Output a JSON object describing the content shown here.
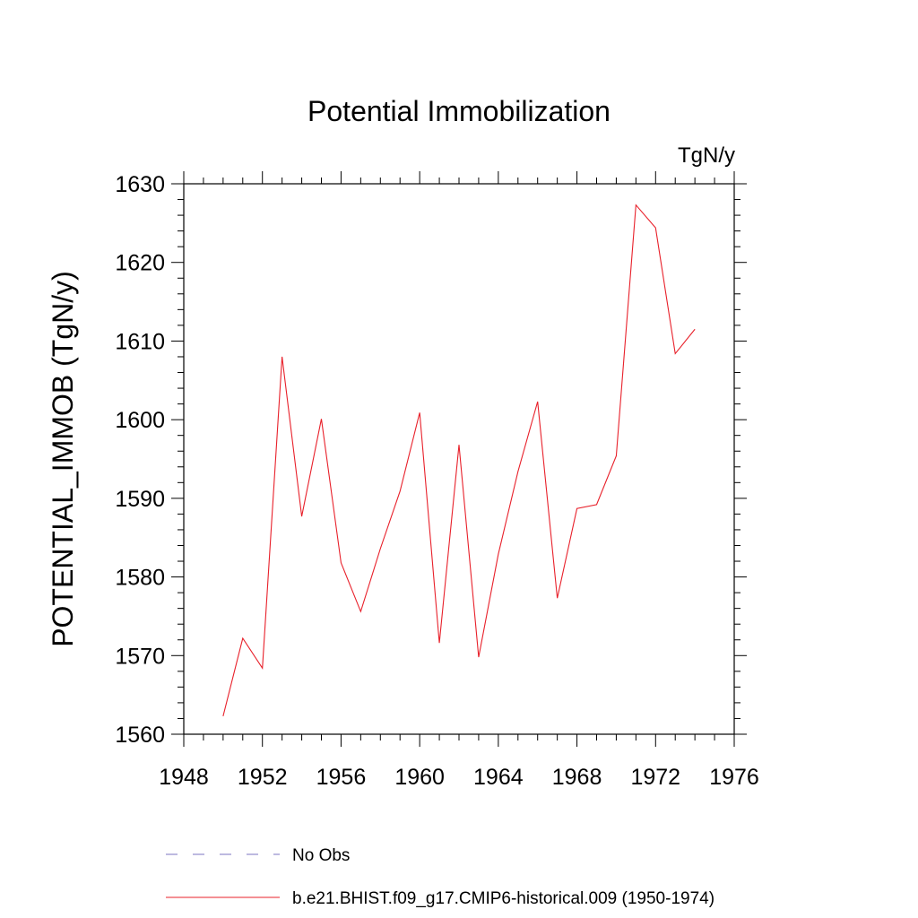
{
  "chart_data": {
    "type": "line",
    "title": "Potential Immobilization",
    "units_label": "TgN/y",
    "ylabel": "POTENTIAL_IMMOB  (TgN/y)",
    "xlabel": "",
    "xlim": [
      1948,
      1976
    ],
    "ylim": [
      1560,
      1630
    ],
    "x_ticks": [
      1948,
      1952,
      1956,
      1960,
      1964,
      1968,
      1972,
      1976
    ],
    "y_ticks": [
      1560,
      1570,
      1580,
      1590,
      1600,
      1610,
      1620,
      1630
    ],
    "grid": false,
    "legend_position": "bottom",
    "legend": [
      {
        "label": "No Obs",
        "color": "#7b74c2",
        "style": "dashed"
      },
      {
        "label": "b.e21.BHIST.f09_g17.CMIP6-historical.009 (1950-1974)",
        "color": "#e8202a",
        "style": "solid"
      }
    ],
    "series": [
      {
        "name": "b.e21.BHIST.f09_g17.CMIP6-historical.009 (1950-1974)",
        "color": "#e8202a",
        "x": [
          1950,
          1951,
          1952,
          1953,
          1954,
          1955,
          1956,
          1957,
          1958,
          1959,
          1960,
          1961,
          1962,
          1963,
          1964,
          1965,
          1966,
          1967,
          1968,
          1969,
          1970,
          1971,
          1972,
          1973,
          1974
        ],
        "y": [
          1562.3,
          1572.2,
          1568.4,
          1608.0,
          1587.7,
          1600.1,
          1581.8,
          1575.6,
          1583.6,
          1590.9,
          1600.9,
          1571.6,
          1596.8,
          1569.8,
          1582.9,
          1593.4,
          1602.3,
          1577.3,
          1588.7,
          1589.2,
          1595.4,
          1627.3,
          1624.4,
          1608.4,
          1611.5
        ]
      }
    ]
  }
}
